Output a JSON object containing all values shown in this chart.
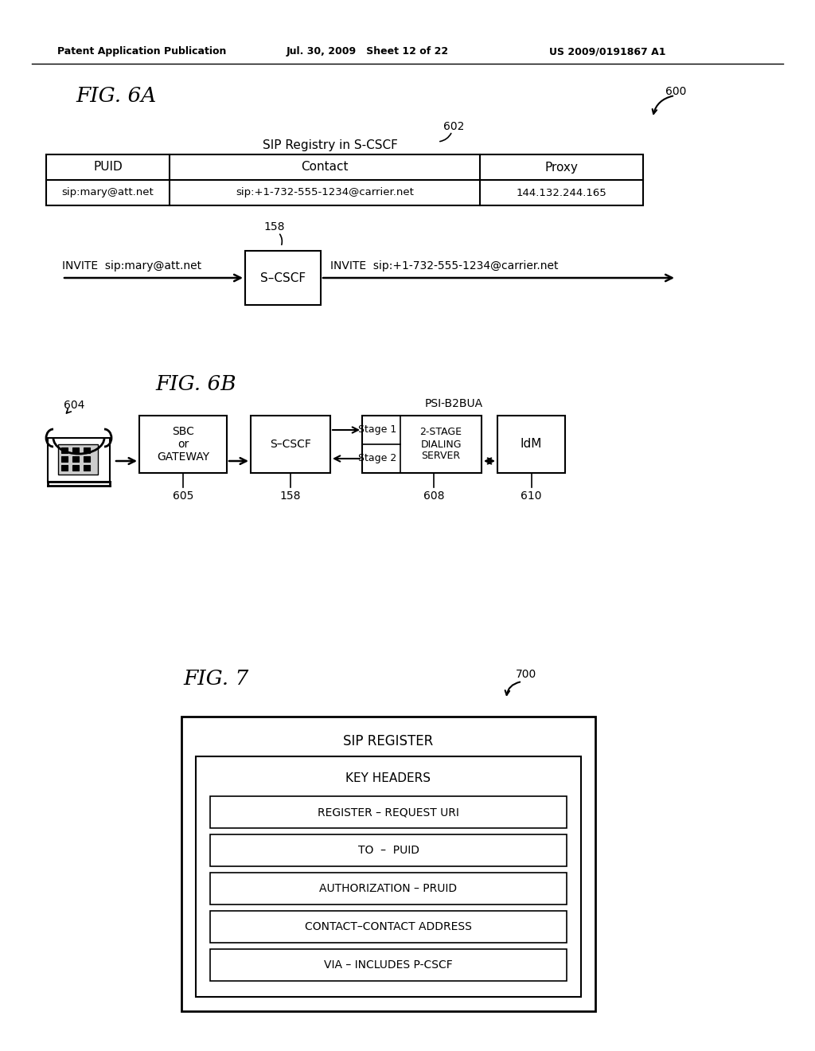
{
  "header_left": "Patent Application Publication",
  "header_mid": "Jul. 30, 2009   Sheet 12 of 22",
  "header_right": "US 2009/0191867 A1",
  "fig6a_label": "FIG. 6A",
  "fig6b_label": "FIG. 6B",
  "fig7_label": "FIG. 7",
  "label_600": "600",
  "label_602": "602",
  "label_604": "604",
  "label_605": "605",
  "label_158a": "158",
  "label_158b": "158",
  "label_608": "608",
  "label_610": "610",
  "label_700": "700",
  "table_title": "SIP Registry in S-CSCF",
  "table_headers": [
    "PUID",
    "Contact",
    "Proxy"
  ],
  "table_row": [
    "sip:mary@att.net",
    "sip:+1-732-555-1234@carrier.net",
    "144.132.244.165"
  ],
  "invite_left": "INVITE  sip:mary@att.net",
  "invite_right": "INVITE  sip:+1-732-555-1234@carrier.net",
  "scscf_label": "S–CSCF",
  "sbc_label": "SBC\nor\nGATEWAY",
  "scscf2_label": "S–CSCF",
  "dialing_label": "2-STAGE\nDIALING\nSERVER",
  "idm_label": "IdM",
  "psi_label": "PSI-B2BUA",
  "stage1_label": "Stage 1",
  "stage2_label": "Stage 2",
  "sip_register_title": "SIP REGISTER",
  "key_headers_title": "KEY HEADERS",
  "key_items": [
    "REGISTER – REQUEST URI",
    "TO  –  PUID",
    "AUTHORIZATION – PRUID",
    "CONTACT–CONTACT ADDRESS",
    "VIA – INCLUDES P-CSCF"
  ],
  "bg_color": "#ffffff",
  "fg_color": "#000000"
}
